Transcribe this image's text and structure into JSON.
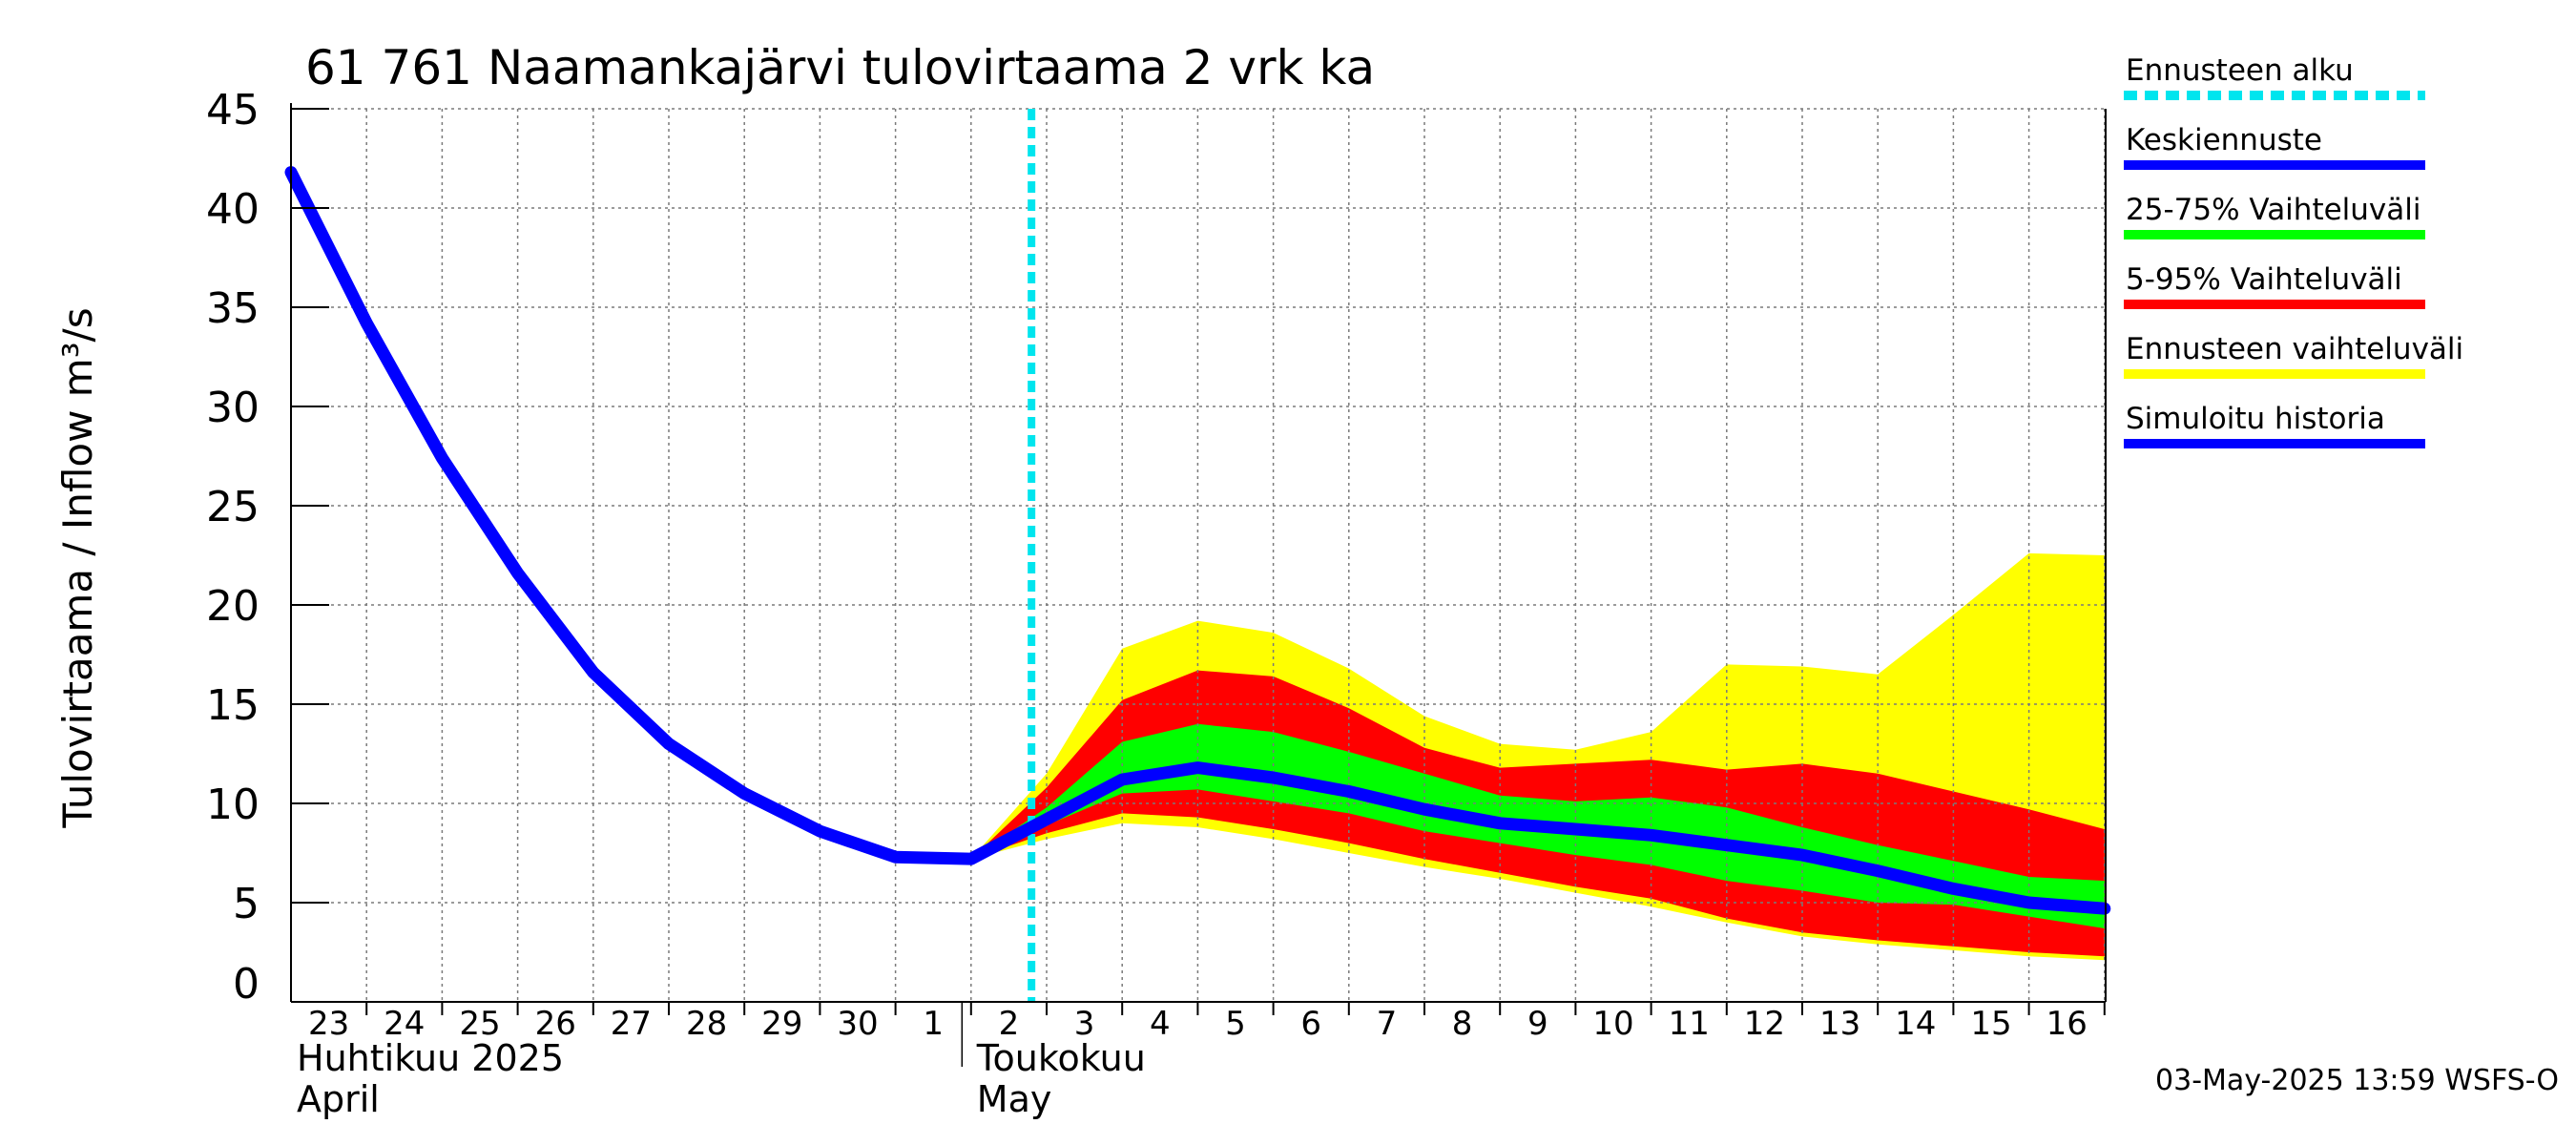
{
  "chart_data": {
    "type": "area",
    "title": "61 761 Naamankajärvi tulovirtaama 2 vrk ka",
    "ylabel": "Tulovirtaama / Inflow    m³/s",
    "ylim": [
      0,
      45
    ],
    "yticks": [
      0,
      5,
      10,
      15,
      20,
      25,
      30,
      35,
      40,
      45
    ],
    "x_day_labels": [
      "23",
      "24",
      "25",
      "26",
      "27",
      "28",
      "29",
      "30",
      "1",
      "2",
      "3",
      "4",
      "5",
      "6",
      "7",
      "8",
      "9",
      "10",
      "11",
      "12",
      "13",
      "14",
      "15",
      "16"
    ],
    "x_month_labels": [
      {
        "fi": "Huhtikuu  2025",
        "en": "April",
        "at_day": 0
      },
      {
        "fi": "Toukokuu",
        "en": "May",
        "at_day": 9
      }
    ],
    "forecast_start_day": 9.8,
    "days_after_first": [
      0,
      1,
      2,
      3,
      4,
      5,
      6,
      7,
      8,
      9,
      10,
      11,
      12,
      13,
      14,
      15,
      16,
      17,
      18,
      19,
      20,
      21,
      22,
      23,
      24
    ],
    "series": [
      {
        "name": "Simuloitu historia",
        "color": "#0000ff",
        "values": [
          41.8,
          34.2,
          27.4,
          21.6,
          16.6,
          13.0,
          10.5,
          8.6,
          7.3,
          7.2,
          9.2,
          11.2,
          11.8,
          11.3,
          10.6,
          9.7,
          9.0,
          8.7,
          8.4,
          7.9,
          7.4,
          6.6,
          5.7,
          5.0,
          4.7
        ]
      },
      {
        "name": "Ennusteen vaihteluväli",
        "color": "#ffff00",
        "upper": [
          null,
          null,
          null,
          null,
          null,
          null,
          null,
          null,
          null,
          7.2,
          11.5,
          17.8,
          19.2,
          18.6,
          16.8,
          14.4,
          13.0,
          12.7,
          13.6,
          17.0,
          16.9,
          16.5,
          19.5,
          22.6,
          22.5
        ],
        "lower": [
          null,
          null,
          null,
          null,
          null,
          null,
          null,
          null,
          null,
          7.2,
          8.2,
          9.0,
          8.8,
          8.2,
          7.5,
          6.8,
          6.2,
          5.5,
          4.8,
          4.0,
          3.3,
          2.9,
          2.6,
          2.3,
          2.1
        ]
      },
      {
        "name": "5-95% Vaihteluväli",
        "color": "#ff0000",
        "upper": [
          null,
          null,
          null,
          null,
          null,
          null,
          null,
          null,
          null,
          7.2,
          10.8,
          15.2,
          16.7,
          16.4,
          14.8,
          12.8,
          11.8,
          12.0,
          12.2,
          11.7,
          12.0,
          11.5,
          10.6,
          9.7,
          8.7
        ],
        "lower": [
          null,
          null,
          null,
          null,
          null,
          null,
          null,
          null,
          null,
          7.2,
          8.5,
          9.5,
          9.3,
          8.7,
          8.0,
          7.2,
          6.5,
          5.8,
          5.2,
          4.2,
          3.5,
          3.1,
          2.8,
          2.5,
          2.3
        ]
      },
      {
        "name": "25-75% Vaihteluväli",
        "color": "#00ff00",
        "upper": [
          null,
          null,
          null,
          null,
          null,
          null,
          null,
          null,
          null,
          7.2,
          9.8,
          13.1,
          14.0,
          13.6,
          12.6,
          11.5,
          10.4,
          10.1,
          10.3,
          9.8,
          8.8,
          7.9,
          7.1,
          6.3,
          6.1
        ],
        "lower": [
          null,
          null,
          null,
          null,
          null,
          null,
          null,
          null,
          null,
          7.2,
          8.9,
          10.5,
          10.7,
          10.1,
          9.5,
          8.6,
          8.0,
          7.4,
          6.9,
          6.1,
          5.6,
          5.0,
          4.9,
          4.3,
          3.7
        ]
      },
      {
        "name": "Keskiennuste",
        "color": "#0000ff"
      }
    ]
  },
  "legend": {
    "items": [
      {
        "label": "Ennusteen alku",
        "color": "#00e5ee",
        "style": "dotted"
      },
      {
        "label": "Keskiennuste",
        "color": "#0000ff",
        "style": "solid"
      },
      {
        "label": "25-75% Vaihteluväli",
        "color": "#00ff00",
        "style": "solid"
      },
      {
        "label": "5-95% Vaihteluväli",
        "color": "#ff0000",
        "style": "solid"
      },
      {
        "label": "Ennusteen vaihteluväli",
        "color": "#ffff00",
        "style": "solid"
      },
      {
        "label": "Simuloitu historia",
        "color": "#0000ff",
        "style": "solid"
      }
    ]
  },
  "footer": "03-May-2025 13:59 WSFS-O"
}
